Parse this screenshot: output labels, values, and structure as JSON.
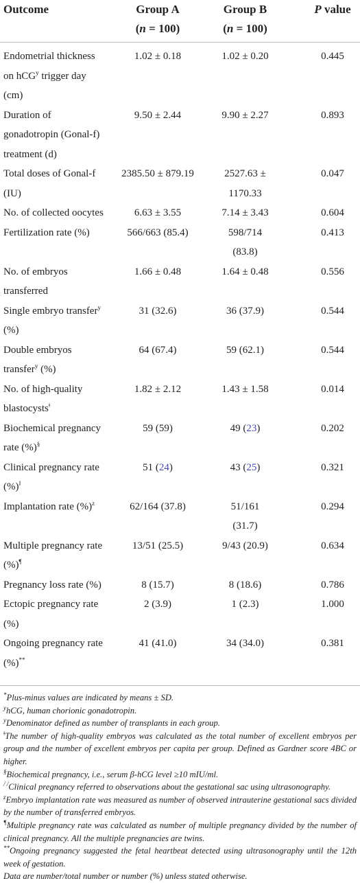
{
  "table": {
    "header": {
      "outcome": "Outcome",
      "group_a": [
        {
          "text": "Group A"
        },
        {
          "text": "("
        },
        {
          "i": "n"
        },
        {
          "text": " = 100)"
        }
      ],
      "group_b": [
        {
          "text": "Group B"
        },
        {
          "text": "("
        },
        {
          "i": "n"
        },
        {
          "text": " = 100)"
        }
      ],
      "p_value": [
        {
          "i": "P"
        },
        {
          "text": " value"
        }
      ]
    },
    "rows": [
      {
        "label": [
          {
            "text": "Endometrial thickness on hCG"
          },
          {
            "sup": "y"
          },
          {
            "text": " trigger day (cm)"
          }
        ],
        "group_a": "1.02 ± 0.18",
        "group_b": "1.02 ± 0.20",
        "p": "0.445"
      },
      {
        "label": [
          {
            "text": "Duration of gonadotropin (Gonal-f) treatment (d)"
          }
        ],
        "group_a": "9.50 ± 2.44",
        "group_b": "9.90 ± 2.27",
        "p": "0.893"
      },
      {
        "label": [
          {
            "text": "Total doses of Gonal-f (IU)"
          }
        ],
        "group_a": "2385.50 ± 879.19",
        "group_b": "2527.63 ± 1170.33",
        "p": "0.047"
      },
      {
        "label": [
          {
            "text": "No. of collected oocytes"
          }
        ],
        "group_a": "6.63 ± 3.55",
        "group_b": "7.14 ± 3.43",
        "p": "0.604"
      },
      {
        "label": [
          {
            "text": "Fertilization rate (%)"
          }
        ],
        "group_a": "566/663 (85.4)",
        "group_b": "598/714 (83.8)",
        "p": "0.413"
      },
      {
        "label": [
          {
            "text": "No. of embryos transferred"
          }
        ],
        "group_a": "1.66 ± 0.48",
        "group_b": "1.64 ± 0.48",
        "p": "0.556"
      },
      {
        "label": [
          {
            "text": "Single embryo transfer"
          },
          {
            "sup": "y"
          },
          {
            "text": " (%)"
          }
        ],
        "group_a": "31 (32.6)",
        "group_b": "36 (37.9)",
        "p": "0.544"
      },
      {
        "label": [
          {
            "text": "Double embryos transfer"
          },
          {
            "sup": "y"
          },
          {
            "text": " (%)"
          }
        ],
        "group_a": "64 (67.4)",
        "group_b": "59 (62.1)",
        "p": "0.544"
      },
      {
        "label": [
          {
            "text": "No. of high-quality blastocysts"
          },
          {
            "sup": "ǂ"
          }
        ],
        "group_a": "1.82 ± 2.12",
        "group_b": "1.43 ± 1.58",
        "p": "0.014"
      },
      {
        "label": [
          {
            "text": "Biochemical pregnancy rate (%)"
          },
          {
            "sup": "§"
          }
        ],
        "group_a": "59 (59)",
        "group_b": [
          {
            "text": "49 ("
          },
          {
            "link": "23"
          },
          {
            "text": ")"
          }
        ],
        "p": "0.202"
      },
      {
        "label": [
          {
            "text": "Clinical pregnancy rate (%)"
          },
          {
            "sup": "‖"
          }
        ],
        "group_a": [
          {
            "text": "51 ("
          },
          {
            "link": "24"
          },
          {
            "text": ")"
          }
        ],
        "group_b": [
          {
            "text": "43 ("
          },
          {
            "link": "25"
          },
          {
            "text": ")"
          }
        ],
        "p": "0.321"
      },
      {
        "label": [
          {
            "text": "Implantation rate (%)"
          },
          {
            "sup": "z"
          }
        ],
        "group_a": "62/164 (37.8)",
        "group_b": "51/161 (31.7)",
        "p": "0.294"
      },
      {
        "label": [
          {
            "text": "Multiple pregnancy rate (%)"
          },
          {
            "sup": "¶"
          }
        ],
        "group_a": "13/51 (25.5)",
        "group_b": "9/43 (20.9)",
        "p": "0.634"
      },
      {
        "label": [
          {
            "text": "Pregnancy loss rate (%)"
          }
        ],
        "group_a": "8 (15.7)",
        "group_b": "8 (18.6)",
        "p": "0.786"
      },
      {
        "label": [
          {
            "text": "Ectopic pregnancy rate (%)"
          }
        ],
        "group_a": "2 (3.9)",
        "group_b": "1 (2.3)",
        "p": "1.000"
      },
      {
        "label": [
          {
            "text": "Ongoing pregnancy rate (%)"
          },
          {
            "sup": "**"
          }
        ],
        "group_a": "41 (41.0)",
        "group_b": "34 (34.0)",
        "p": "0.381"
      }
    ]
  },
  "footnotes": [
    {
      "mark": "*",
      "text": "Plus-minus values are indicated by means ± SD."
    },
    {
      "mark": "y",
      "text": "hCG, human chorionic gonadotropin."
    },
    {
      "mark": "y",
      "text": "Denominator defined as number of transplants in each group."
    },
    {
      "mark": "ǂ",
      "text": "The number of high-quality embryos was calculated as the total number of excellent embryos per group and the number of excellent embryos per capita per group. Defined as Gardner score 4BC or higher."
    },
    {
      "mark": "§",
      "text": "Biochemical pregnancy, i.e., serum β-hCG level ≥10 mIU/ml."
    },
    {
      "mark": "/ /",
      "text": "Clinical pregnancy referred to observations about the gestational sac using ultrasonography."
    },
    {
      "mark": "z",
      "text": "Embryo implantation rate was measured as number of observed intrauterine gestational sacs divided by the number of transferred embryos."
    },
    {
      "mark": "¶",
      "text": "Multiple pregnancy rate was calculated as number of multiple pregnancy divided by the number of clinical pregnancy. All the multiple pregnancies are twins."
    },
    {
      "mark": "**",
      "text": "Ongoing pregnancy suggested the fetal heartbeat detected using ultrasonography until the 12th week of gestation."
    },
    {
      "text": "Data are number/total number or number (%) unless stated otherwise."
    }
  ]
}
